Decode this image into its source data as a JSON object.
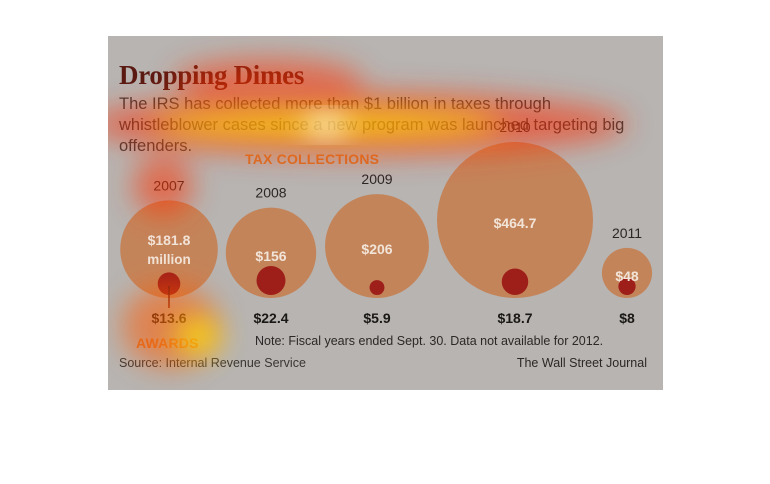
{
  "chart": {
    "title": "Dropping Dimes",
    "subtitle": "The IRS has collected more than $1 billion in taxes through whistleblower cases since a new program was launched targeting big offenders.",
    "series_labels": {
      "tax_collections": "TAX COLLECTIONS",
      "awards": "AWARDS"
    },
    "note": "Note: Fiscal years ended Sept. 30. Data not available for 2012.",
    "source": "Source: Internal Revenue Service",
    "credit": "The Wall Street Journal"
  },
  "chart_data": {
    "type": "bubble",
    "categories": [
      "2007",
      "2008",
      "2009",
      "2010",
      "2011"
    ],
    "series": [
      {
        "name": "TAX COLLECTIONS",
        "values": [
          181.8,
          156,
          206,
          464.7,
          48
        ],
        "labels": [
          "$181.8",
          "$156",
          "$206",
          "$464.7",
          "$48"
        ],
        "unit_label": "million"
      },
      {
        "name": "AWARDS",
        "values": [
          13.6,
          22.4,
          5.9,
          18.7,
          8
        ],
        "labels": [
          "$13.6",
          "$22.4",
          "$5.9",
          "$18.7",
          "$8"
        ]
      }
    ]
  },
  "colors": {
    "background": "#b7b4b1",
    "collections_bubble": "#c4845a",
    "awards_bubble": "#9e1e1a",
    "title": "#5a1a12",
    "section_label": "#d4742c"
  }
}
